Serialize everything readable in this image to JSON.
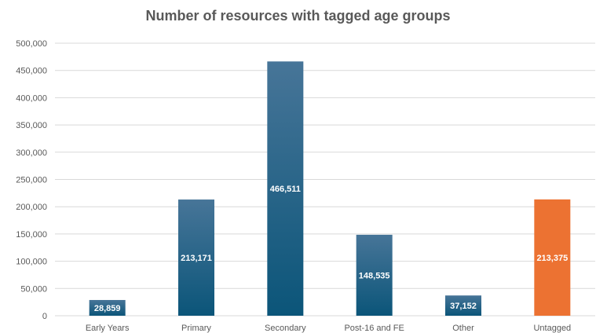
{
  "chart_data": {
    "type": "bar",
    "title": "Number of resources with tagged age groups",
    "xlabel": "",
    "ylabel": "",
    "ylim": [
      0,
      500000
    ],
    "yticks": [
      "0",
      "50,000",
      "100,000",
      "150,000",
      "200,000",
      "250,000",
      "300,000",
      "350,000",
      "400,000",
      "450,000",
      "500,000"
    ],
    "ytick_values": [
      0,
      50000,
      100000,
      150000,
      200000,
      250000,
      300000,
      350000,
      400000,
      450000,
      500000
    ],
    "grid": true,
    "categories": [
      "Early Years",
      "Primary",
      "Secondary",
      "Post-16 and FE",
      "Other",
      "Untagged"
    ],
    "values": [
      28859,
      213171,
      466511,
      148535,
      37152,
      213375
    ],
    "data_labels": [
      "28,859",
      "213,171",
      "466,511",
      "148,535",
      "37,152",
      "213,375"
    ],
    "colors": {
      "bar_top": "#477598",
      "bar_bottom": "#0b5579",
      "highlight": "#ec7232",
      "grid": "#d9d9d9",
      "text": "#595959"
    },
    "highlight_index": 5
  }
}
